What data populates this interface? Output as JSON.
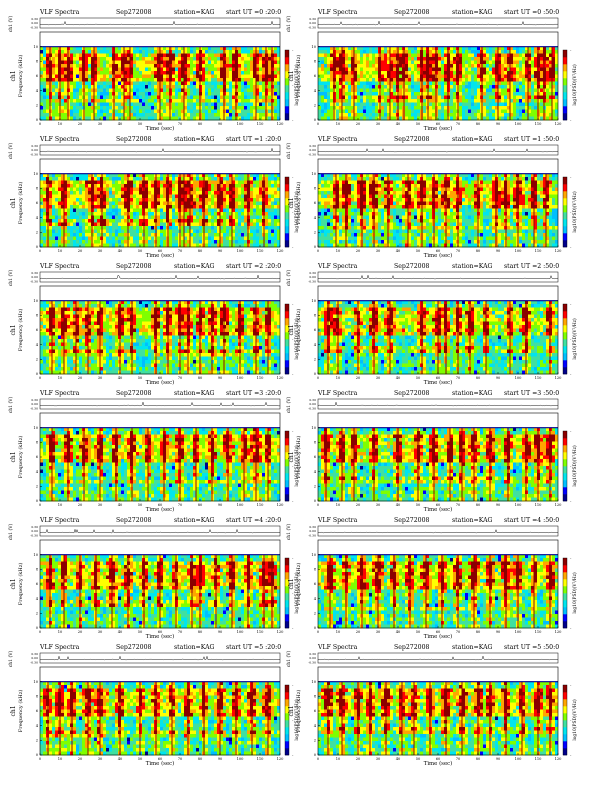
{
  "figure": {
    "title_prefix": "VLF Spectra",
    "date": "Sep272008",
    "station": "station=KAG",
    "start_prefix": "start  UT ="
  },
  "colors": {
    "frame": "#000000",
    "colormap": [
      "#00008b",
      "#0000ff",
      "#00bfff",
      "#00e5ee",
      "#40e0a0",
      "#7fff00",
      "#ffff00",
      "#ffa500",
      "#ff0000",
      "#8b0000"
    ]
  },
  "chart_data": [
    {
      "type": "heatmap",
      "title": "VLF Spectra",
      "date": "Sep272008",
      "station": "station=KAG",
      "start_ut": "0 :20:0",
      "xlabel": "Time  (sec)",
      "ylabel": "Frequency  (kHz)",
      "channel_label": "ch1",
      "ch_axis_label": "ch1 (V)",
      "colorbar_label": "log10(PSD)(V²/Hz)",
      "colorbar_ticks": [
        "-",
        "-",
        "-"
      ],
      "x_ticks": [
        0,
        10,
        20,
        30,
        40,
        50,
        60,
        70,
        80,
        90,
        100,
        110,
        120
      ],
      "xlim": [
        0,
        120
      ],
      "y_ticks": [
        0,
        2,
        4,
        6,
        8,
        10
      ],
      "ylim": [
        0,
        12
      ],
      "ch_ticks": [
        "0.30",
        "0.00",
        "-0.30"
      ],
      "ch_range": [
        -0.3,
        0.3
      ],
      "cutoff_khz": 10,
      "burst_times_sec": [
        5,
        10,
        14,
        22,
        27,
        37,
        42,
        45,
        60,
        65,
        72,
        80,
        92,
        98,
        108,
        113,
        116
      ]
    },
    {
      "type": "heatmap",
      "title": "VLF Spectra",
      "date": "Sep272008",
      "station": "station=KAG",
      "start_ut": "0 :50:0",
      "xlabel": "Time  (sec)",
      "ylabel": "Frequency  (kHz)",
      "channel_label": "ch1",
      "ch_axis_label": "ch1 (V)",
      "colorbar_label": "log10(PSD)(V²/Hz)",
      "colorbar_ticks": [
        "-",
        "-",
        "-"
      ],
      "x_ticks": [
        0,
        10,
        20,
        30,
        40,
        50,
        60,
        70,
        80,
        90,
        100,
        110,
        120
      ],
      "xlim": [
        0,
        120
      ],
      "y_ticks": [
        0,
        2,
        4,
        6,
        8,
        10
      ],
      "ylim": [
        0,
        12
      ],
      "ch_ticks": [
        "0.30",
        "0.00",
        "-0.30"
      ],
      "ch_range": [
        -0.3,
        0.3
      ],
      "cutoff_khz": 10,
      "burst_times_sec": [
        8,
        12,
        18,
        31,
        36,
        40,
        43,
        52,
        55,
        59,
        65,
        70,
        82,
        90,
        96,
        105,
        110,
        113,
        117
      ]
    },
    {
      "type": "heatmap",
      "title": "VLF Spectra",
      "date": "Sep272008",
      "station": "station=KAG",
      "start_ut": "1 :20:0",
      "xlabel": "Time  (sec)",
      "ylabel": "Frequency  (kHz)",
      "channel_label": "ch1",
      "ch_axis_label": "ch1 (V)",
      "colorbar_label": "log10(PSD)(V²/Hz)",
      "colorbar_ticks": [
        "-",
        "-",
        "-"
      ],
      "x_ticks": [
        0,
        10,
        20,
        30,
        40,
        50,
        60,
        70,
        80,
        90,
        100,
        110,
        120
      ],
      "xlim": [
        0,
        120
      ],
      "y_ticks": [
        0,
        2,
        4,
        6,
        8,
        10
      ],
      "ylim": [
        0,
        12
      ],
      "ch_ticks": [
        "0.30",
        "0.00",
        "-0.30"
      ],
      "ch_range": [
        -0.3,
        0.3
      ],
      "cutoff_khz": 10,
      "burst_times_sec": [
        4,
        12,
        26,
        31,
        44,
        52,
        58,
        64,
        70,
        72,
        75,
        82,
        90,
        96,
        104,
        112
      ]
    },
    {
      "type": "heatmap",
      "title": "VLF Spectra",
      "date": "Sep272008",
      "station": "station=KAG",
      "start_ut": "1 :50:0",
      "xlabel": "Time  (sec)",
      "ylabel": "Frequency  (kHz)",
      "channel_label": "ch1",
      "ch_axis_label": "ch1 (V)",
      "colorbar_label": "log10(PSD)(V²/Hz)",
      "colorbar_ticks": [
        "-",
        "-",
        "-"
      ],
      "x_ticks": [
        0,
        10,
        20,
        30,
        40,
        50,
        60,
        70,
        80,
        90,
        100,
        110,
        120
      ],
      "xlim": [
        0,
        120
      ],
      "y_ticks": [
        0,
        2,
        4,
        6,
        8,
        10
      ],
      "ylim": [
        0,
        12
      ],
      "ch_ticks": [
        "0.30",
        "0.00",
        "-0.30"
      ],
      "ch_range": [
        -0.3,
        0.3
      ],
      "cutoff_khz": 10,
      "burst_times_sec": [
        9,
        14,
        22,
        28,
        35,
        45,
        52,
        58,
        64,
        70,
        80,
        89,
        94,
        100,
        108,
        114
      ]
    },
    {
      "type": "heatmap",
      "title": "VLF Spectra",
      "date": "Sep272008",
      "station": "station=KAG",
      "start_ut": "2 :20:0",
      "xlabel": "Time  (sec)",
      "ylabel": "Frequency  (kHz)",
      "channel_label": "ch1",
      "ch_axis_label": "ch1 (V)",
      "colorbar_label": "log10(PSD)(V²/Hz)",
      "colorbar_ticks": [
        "-",
        "-",
        "-"
      ],
      "x_ticks": [
        0,
        10,
        20,
        30,
        40,
        50,
        60,
        70,
        80,
        90,
        100,
        110,
        120
      ],
      "xlim": [
        0,
        120
      ],
      "y_ticks": [
        0,
        2,
        4,
        6,
        8,
        10
      ],
      "ylim": [
        0,
        12
      ],
      "ch_ticks": [
        "0.30",
        "0.00",
        "-0.30"
      ],
      "ch_range": [
        -0.3,
        0.3
      ],
      "cutoff_khz": 10,
      "burst_times_sec": [
        6,
        12,
        18,
        24,
        30,
        40,
        46,
        58,
        64,
        70,
        74,
        80,
        86,
        92,
        100,
        108,
        114
      ]
    },
    {
      "type": "heatmap",
      "title": "VLF Spectra",
      "date": "Sep272008",
      "station": "station=KAG",
      "start_ut": "2 :50:0",
      "xlabel": "Time  (sec)",
      "ylabel": "Frequency  (kHz)",
      "channel_label": "ch1",
      "ch_axis_label": "ch1 (V)",
      "colorbar_label": "log10(PSD)(V²/Hz)",
      "colorbar_ticks": [
        "-",
        "-",
        "-"
      ],
      "x_ticks": [
        0,
        10,
        20,
        30,
        40,
        50,
        60,
        70,
        80,
        90,
        100,
        110,
        120
      ],
      "xlim": [
        0,
        120
      ],
      "y_ticks": [
        0,
        2,
        4,
        6,
        8,
        10
      ],
      "ylim": [
        0,
        12
      ],
      "ch_ticks": [
        "0.30",
        "0.00",
        "-0.30"
      ],
      "ch_range": [
        -0.3,
        0.3
      ],
      "cutoff_khz": 10,
      "burst_times_sec": [
        5,
        10,
        20,
        28,
        36,
        52,
        60,
        64,
        70,
        76,
        84,
        96,
        104,
        116
      ]
    },
    {
      "type": "heatmap",
      "title": "VLF Spectra",
      "date": "Sep272008",
      "station": "station=KAG",
      "start_ut": "3 :20:0",
      "xlabel": "Time  (sec)",
      "ylabel": "Frequency  (kHz)",
      "channel_label": "ch1",
      "ch_axis_label": "ch1 (V)",
      "colorbar_label": "log10(PSD)(V²/Hz)",
      "colorbar_ticks": [
        "-",
        "-",
        "-"
      ],
      "x_ticks": [
        0,
        10,
        20,
        30,
        40,
        50,
        60,
        70,
        80,
        90,
        100,
        110,
        120
      ],
      "xlim": [
        0,
        120
      ],
      "y_ticks": [
        0,
        2,
        4,
        6,
        8,
        10
      ],
      "ylim": [
        0,
        12
      ],
      "ch_ticks": [
        "0.30",
        "0.00",
        "-0.30"
      ],
      "ch_range": [
        -0.3,
        0.3
      ],
      "cutoff_khz": 10,
      "burst_times_sec": [
        6,
        14,
        22,
        30,
        38,
        46,
        54,
        62,
        70,
        78,
        86,
        94,
        102,
        108,
        114
      ]
    },
    {
      "type": "heatmap",
      "title": "VLF Spectra",
      "date": "Sep272008",
      "station": "station=KAG",
      "start_ut": "3 :50:0",
      "xlabel": "Time  (sec)",
      "ylabel": "Frequency  (kHz)",
      "channel_label": "ch1",
      "ch_axis_label": "ch1 (V)",
      "colorbar_label": "log10(PSD)(V²/Hz)",
      "colorbar_ticks": [
        "-",
        "-",
        "-"
      ],
      "x_ticks": [
        0,
        10,
        20,
        30,
        40,
        50,
        60,
        70,
        80,
        90,
        100,
        110,
        120
      ],
      "xlim": [
        0,
        120
      ],
      "y_ticks": [
        0,
        2,
        4,
        6,
        8,
        10
      ],
      "ylim": [
        0,
        12
      ],
      "ch_ticks": [
        "0.30",
        "0.00",
        "-0.30"
      ],
      "ch_range": [
        -0.3,
        0.3
      ],
      "cutoff_khz": 10,
      "burst_times_sec": [
        4,
        12,
        18,
        28,
        40,
        50,
        58,
        66,
        72,
        78,
        86,
        95,
        104,
        110,
        116
      ]
    },
    {
      "type": "heatmap",
      "title": "VLF Spectra",
      "date": "Sep272008",
      "station": "station=KAG",
      "start_ut": "4 :20:0",
      "xlabel": "Time  (sec)",
      "ylabel": "Frequency  (kHz)",
      "channel_label": "ch1",
      "ch_axis_label": "ch1 (V)",
      "colorbar_label": "log10(PSD)(V²/Hz)",
      "colorbar_ticks": [
        "-",
        "-",
        "-"
      ],
      "x_ticks": [
        0,
        10,
        20,
        30,
        40,
        50,
        60,
        70,
        80,
        90,
        100,
        110,
        120
      ],
      "xlim": [
        0,
        120
      ],
      "y_ticks": [
        0,
        2,
        4,
        6,
        8,
        10
      ],
      "ylim": [
        0,
        12
      ],
      "ch_ticks": [
        "0.30",
        "0.00",
        "-0.30"
      ],
      "ch_range": [
        -0.3,
        0.3
      ],
      "cutoff_khz": 10,
      "burst_times_sec": [
        5,
        12,
        20,
        28,
        36,
        44,
        52,
        60,
        68,
        76,
        80,
        88,
        96,
        104,
        112,
        116
      ]
    },
    {
      "type": "heatmap",
      "title": "VLF Spectra",
      "date": "Sep272008",
      "station": "station=KAG",
      "start_ut": "4 :50:0",
      "xlabel": "Time  (sec)",
      "ylabel": "Frequency  (kHz)",
      "channel_label": "ch1",
      "ch_axis_label": "ch1 (V)",
      "colorbar_label": "log10(PSD)(V²/Hz)",
      "colorbar_ticks": [
        "-",
        "-",
        "-"
      ],
      "x_ticks": [
        0,
        10,
        20,
        30,
        40,
        50,
        60,
        70,
        80,
        90,
        100,
        110,
        120
      ],
      "xlim": [
        0,
        120
      ],
      "y_ticks": [
        0,
        2,
        4,
        6,
        8,
        10
      ],
      "ylim": [
        0,
        12
      ],
      "ch_ticks": [
        "0.30",
        "0.00",
        "-0.30"
      ],
      "ch_range": [
        -0.3,
        0.3
      ],
      "cutoff_khz": 10,
      "burst_times_sec": [
        6,
        14,
        22,
        30,
        38,
        46,
        54,
        62,
        70,
        78,
        86,
        94,
        100,
        108,
        116
      ]
    },
    {
      "type": "heatmap",
      "title": "VLF Spectra",
      "date": "Sep272008",
      "station": "station=KAG",
      "start_ut": "5 :20:0",
      "xlabel": "Time  (sec)",
      "ylabel": "Frequency  (kHz)",
      "channel_label": "ch1",
      "ch_axis_label": "ch1 (V)",
      "colorbar_label": "log10(PSD)(V²/Hz)",
      "colorbar_ticks": [
        "-",
        "-",
        "-"
      ],
      "x_ticks": [
        0,
        10,
        20,
        30,
        40,
        50,
        60,
        70,
        80,
        90,
        100,
        110,
        120
      ],
      "xlim": [
        0,
        120
      ],
      "y_ticks": [
        0,
        2,
        4,
        6,
        8,
        10
      ],
      "ylim": [
        0,
        12
      ],
      "ch_ticks": [
        "0.30",
        "0.00",
        "-0.30"
      ],
      "ch_range": [
        -0.3,
        0.3
      ],
      "cutoff_khz": 10,
      "burst_times_sec": [
        4,
        10,
        16,
        24,
        30,
        40,
        50,
        58,
        66,
        74,
        82,
        90,
        98,
        106,
        114
      ]
    },
    {
      "type": "heatmap",
      "title": "VLF Spectra",
      "date": "Sep272008",
      "station": "station=KAG",
      "start_ut": "5 :50:0",
      "xlabel": "Time  (sec)",
      "ylabel": "Frequency  (kHz)",
      "channel_label": "ch1",
      "ch_axis_label": "ch1 (V)",
      "colorbar_label": "log10(PSD)(V²/Hz)",
      "colorbar_ticks": [
        "-",
        "-",
        "-"
      ],
      "x_ticks": [
        0,
        10,
        20,
        30,
        40,
        50,
        60,
        70,
        80,
        90,
        100,
        110,
        120
      ],
      "xlim": [
        0,
        120
      ],
      "y_ticks": [
        0,
        2,
        4,
        6,
        8,
        10
      ],
      "ylim": [
        0,
        12
      ],
      "ch_ticks": [
        "0.30",
        "0.00",
        "-0.30"
      ],
      "ch_range": [
        -0.3,
        0.3
      ],
      "cutoff_khz": 10,
      "burst_times_sec": [
        5,
        12,
        20,
        26,
        34,
        42,
        48,
        56,
        64,
        72,
        80,
        86,
        94,
        102,
        110,
        116
      ]
    }
  ]
}
